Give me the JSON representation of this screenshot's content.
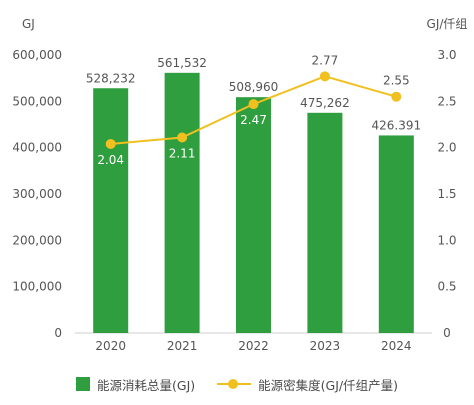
{
  "chart_data": {
    "type": "bar",
    "categories": [
      "2020",
      "2021",
      "2022",
      "2023",
      "2024"
    ],
    "series": [
      {
        "name": "能源消耗总量(GJ)",
        "type": "bar",
        "axis": "left",
        "values": [
          528232,
          561532,
          508960,
          475262,
          426391
        ],
        "labels": [
          "528,232",
          "561,532",
          "508,960",
          "475,262",
          "426.391"
        ],
        "color": "#2e9e3e"
      },
      {
        "name": "能源密集度(GJ/仟组产量)",
        "type": "line",
        "axis": "right",
        "values": [
          2.04,
          2.11,
          2.47,
          2.77,
          2.55
        ],
        "labels": [
          "2.04",
          "2.11",
          "2.47",
          "2.77",
          "2.55"
        ],
        "color": "#f0c020"
      }
    ],
    "y_left": {
      "unit": "GJ",
      "ylim": [
        0,
        600000
      ],
      "ticks": [
        "0",
        "100,000",
        "200,000",
        "300,000",
        "400,000",
        "500,000",
        "600,000"
      ]
    },
    "y_right": {
      "unit": "GJ/仟组",
      "ylim": [
        0,
        3.0
      ],
      "ticks": [
        "0",
        "0.5",
        "1.0",
        "1.5",
        "2.0",
        "2.5",
        "3.0"
      ]
    },
    "grid": false,
    "legend_position": "bottom"
  }
}
